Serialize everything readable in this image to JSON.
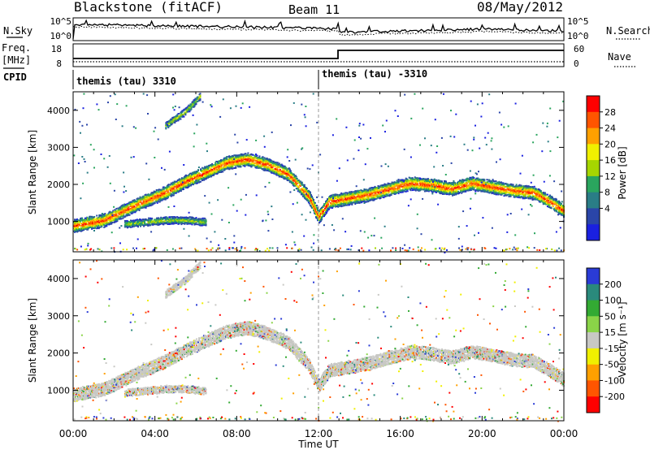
{
  "header": {
    "station": "Blackstone (fitACF)",
    "beam": "Beam 11",
    "date": "08/May/2012"
  },
  "noise_panel": {
    "left_label": "N.Sky",
    "right_label": "N.Search",
    "left_ticks": [
      "10^5",
      "10^0"
    ],
    "right_ticks": [
      "10^5",
      "10^0"
    ]
  },
  "freq_panel": {
    "left_label_1": "Freq.",
    "left_label_2": "[MHz]",
    "right_label": "Nave",
    "left_ticks": [
      "18",
      "8"
    ],
    "right_ticks": [
      "60",
      "0"
    ]
  },
  "cpid": {
    "label": "CPID",
    "segments": [
      {
        "label": "themis (tau) 3310",
        "start_hour": 0
      },
      {
        "label": "themis (tau) -3310",
        "start_hour": 12
      }
    ]
  },
  "chart_data": [
    {
      "type": "heatmap",
      "id": "power",
      "ylabel": "Slant Range [km]",
      "y_ticks": [
        1000,
        2000,
        3000,
        4000
      ],
      "ylim": [
        180,
        4500
      ],
      "xlim": [
        0,
        24
      ],
      "colorbar": {
        "label": "Power [dB]",
        "ticks": [
          "28",
          "24",
          "20",
          "16",
          "12",
          "8",
          "4"
        ],
        "colors": [
          "#ff0000",
          "#ff5500",
          "#ffa000",
          "#f0f000",
          "#a6d600",
          "#2aa55e",
          "#2a7d86",
          "#2a45a8",
          "#1a20e0"
        ]
      },
      "echo_bands": [
        {
          "name": "main",
          "points": [
            [
              0.0,
              900
            ],
            [
              1.5,
              1050
            ],
            [
              3.0,
              1450
            ],
            [
              4.5,
              1800
            ],
            [
              5.5,
              2100
            ],
            [
              6.5,
              2350
            ],
            [
              7.5,
              2600
            ],
            [
              8.5,
              2700
            ],
            [
              9.5,
              2550
            ],
            [
              10.5,
              2300
            ],
            [
              11.0,
              2000
            ],
            [
              11.5,
              1700
            ],
            [
              12.0,
              1150
            ],
            [
              12.5,
              1550
            ],
            [
              13.5,
              1650
            ],
            [
              14.5,
              1750
            ],
            [
              15.5,
              1900
            ],
            [
              16.5,
              2050
            ],
            [
              17.5,
              2000
            ],
            [
              18.5,
              1900
            ],
            [
              19.5,
              2050
            ],
            [
              20.5,
              1950
            ],
            [
              21.5,
              1850
            ],
            [
              22.5,
              1800
            ],
            [
              23.3,
              1550
            ],
            [
              24.0,
              1300
            ]
          ]
        },
        {
          "name": "lower",
          "points": [
            [
              2.5,
              950
            ],
            [
              3.5,
              1000
            ],
            [
              4.5,
              1050
            ],
            [
              5.5,
              1050
            ],
            [
              6.5,
              1000
            ]
          ]
        },
        {
          "name": "upper",
          "points": [
            [
              4.5,
              3600
            ],
            [
              5.5,
              4000
            ],
            [
              6.2,
              4400
            ]
          ]
        }
      ]
    },
    {
      "type": "heatmap",
      "id": "velocity",
      "ylabel": "Slant Range [km]",
      "y_ticks": [
        1000,
        2000,
        3000,
        4000
      ],
      "ylim": [
        180,
        4500
      ],
      "xlim": [
        0,
        24
      ],
      "colorbar": {
        "label": "Velocity [m s⁻¹]",
        "ticks": [
          "200",
          "100",
          "50",
          "15",
          "-15",
          "-50",
          "-100",
          "-200"
        ],
        "colors": [
          "#2a3bd6",
          "#2a8a7c",
          "#33aa33",
          "#8ad448",
          "#c8c8c4",
          "#f0f000",
          "#ffa000",
          "#ff5500",
          "#ff0000"
        ]
      }
    }
  ],
  "x_axis": {
    "label": "Time UT",
    "ticks": [
      "00:00",
      "04:00",
      "08:00",
      "12:00",
      "16:00",
      "20:00",
      "00:00"
    ]
  }
}
